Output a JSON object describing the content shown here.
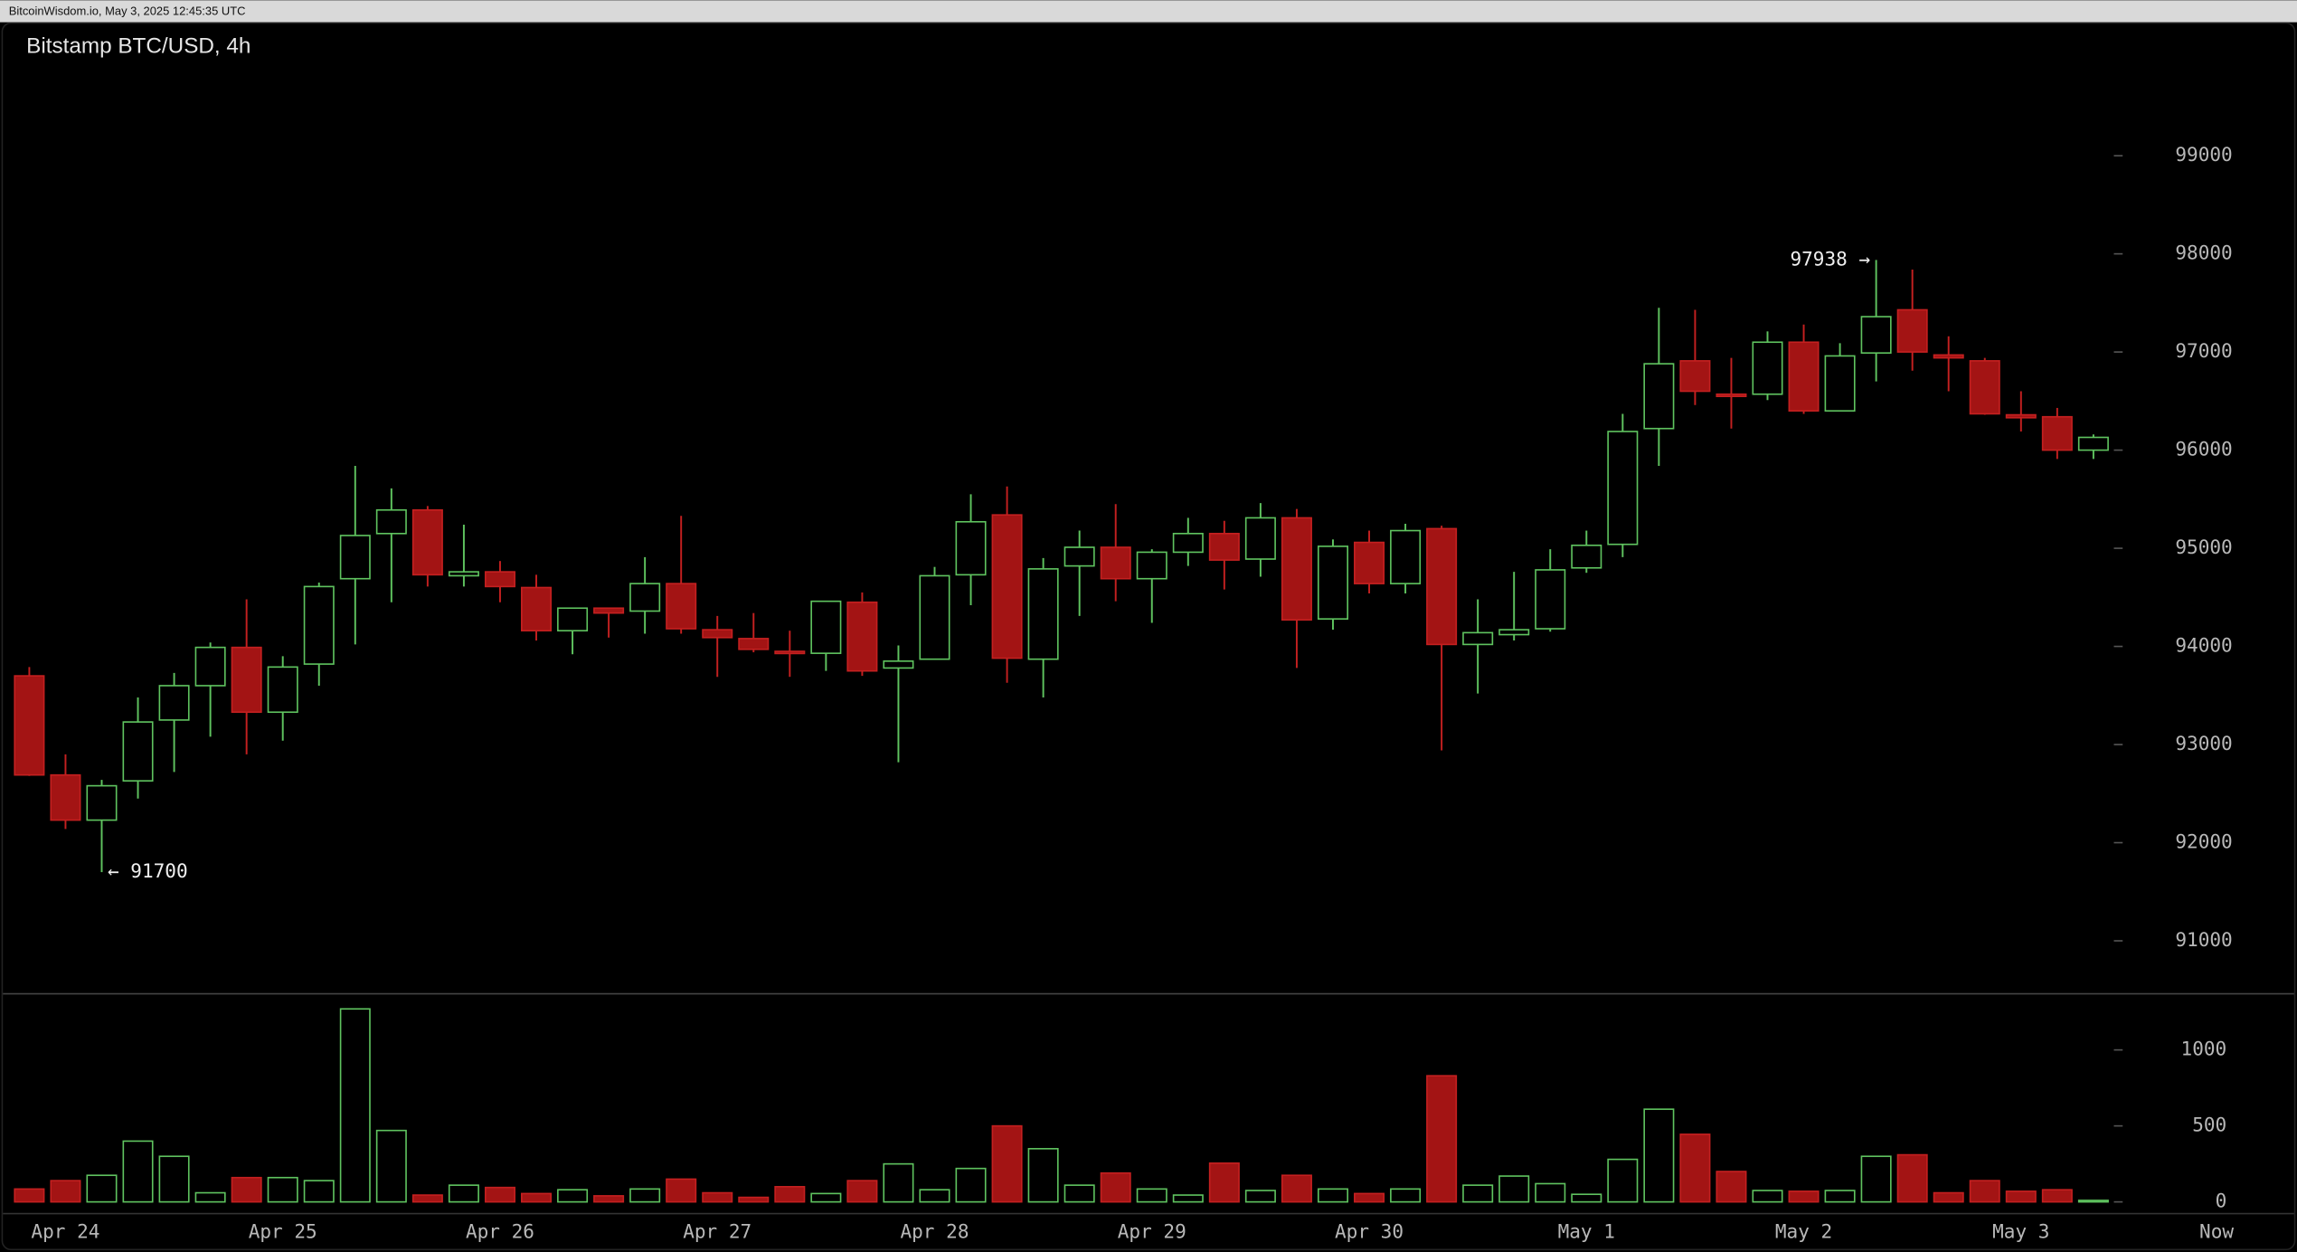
{
  "header": {
    "text": "BitcoinWisdom.io, May 3, 2025 12:45:35 UTC"
  },
  "chart_data": {
    "type": "candlestick",
    "title": "Bitstamp BTC/USD, 4h",
    "categories": [
      null,
      "Apr 24",
      null,
      null,
      null,
      null,
      null,
      "Apr 25",
      null,
      null,
      null,
      null,
      null,
      "Apr 26",
      null,
      null,
      null,
      null,
      null,
      "Apr 27",
      null,
      null,
      null,
      null,
      null,
      "Apr 28",
      null,
      null,
      null,
      null,
      null,
      "Apr 29",
      null,
      null,
      null,
      null,
      null,
      "Apr 30",
      null,
      null,
      null,
      null,
      null,
      "May 1",
      null,
      null,
      null,
      null,
      null,
      "May 2",
      null,
      null,
      null,
      null,
      null,
      "May 3",
      null,
      null
    ],
    "now_label": "Now",
    "open": [
      93700,
      92690,
      92230,
      92630,
      93250,
      93600,
      93990,
      93330,
      93820,
      94690,
      95150,
      95390,
      94720,
      94760,
      94600,
      94160,
      94390,
      94360,
      94640,
      94170,
      94080,
      93950,
      93930,
      94450,
      93780,
      93870,
      94730,
      95340,
      93870,
      94820,
      95010,
      94690,
      94960,
      95150,
      94890,
      95310,
      94280,
      95060,
      94640,
      95200,
      94020,
      94120,
      94180,
      94800,
      95040,
      96220,
      96910,
      96570,
      96570,
      97100,
      96400,
      96990,
      97430,
      96970,
      96910,
      96360,
      96340,
      96000
    ],
    "high": [
      93790,
      92900,
      92640,
      93480,
      93730,
      94040,
      94480,
      93900,
      94650,
      95840,
      95610,
      95430,
      95240,
      94870,
      94730,
      94390,
      94390,
      94910,
      95330,
      94310,
      94340,
      94160,
      94460,
      94550,
      94010,
      94810,
      95550,
      95630,
      94900,
      95180,
      95450,
      94990,
      95310,
      95280,
      95460,
      95400,
      95090,
      95180,
      95250,
      95230,
      94480,
      94760,
      94990,
      95180,
      96370,
      97450,
      97430,
      96940,
      97210,
      97280,
      97090,
      97938,
      97840,
      97160,
      96940,
      96600,
      96430,
      96160
    ],
    "low": [
      92680,
      92140,
      91700,
      92450,
      92720,
      93080,
      92900,
      93040,
      93600,
      94020,
      94450,
      94610,
      94610,
      94450,
      94060,
      93920,
      94090,
      94130,
      94130,
      93690,
      93940,
      93690,
      93750,
      93700,
      92820,
      93870,
      94420,
      93630,
      93480,
      94310,
      94460,
      94240,
      94820,
      94580,
      94710,
      93780,
      94170,
      94540,
      94540,
      92940,
      93520,
      94060,
      94150,
      94750,
      94910,
      95840,
      96460,
      96220,
      96510,
      96370,
      96400,
      96700,
      96810,
      96600,
      96360,
      96190,
      95910,
      95910
    ],
    "close": [
      92690,
      92230,
      92580,
      93230,
      93600,
      93990,
      93330,
      93790,
      94610,
      95130,
      95390,
      94730,
      94760,
      94610,
      94160,
      94390,
      94340,
      94640,
      94180,
      94090,
      93970,
      93930,
      94460,
      93750,
      93850,
      94720,
      95270,
      93880,
      94790,
      95010,
      94690,
      94960,
      95150,
      94880,
      95310,
      94270,
      95020,
      94640,
      95180,
      94020,
      94140,
      94170,
      94780,
      95030,
      96190,
      96880,
      96600,
      96550,
      97100,
      96400,
      96960,
      97360,
      97000,
      96940,
      96370,
      96330,
      96000,
      96130
    ],
    "volume": [
      85,
      140,
      175,
      400,
      300,
      60,
      160,
      160,
      140,
      1270,
      470,
      45,
      110,
      95,
      55,
      80,
      40,
      85,
      150,
      60,
      30,
      100,
      55,
      140,
      250,
      80,
      220,
      500,
      350,
      110,
      190,
      85,
      45,
      255,
      75,
      175,
      85,
      55,
      85,
      830,
      110,
      170,
      120,
      50,
      280,
      610,
      445,
      200,
      75,
      70,
      75,
      300,
      310,
      60,
      140,
      70,
      80,
      10
    ],
    "up_color": "#5fc35f",
    "down_color": "#a31414",
    "ylim": [
      90460,
      100360
    ],
    "yticks": [
      91000,
      92000,
      93000,
      94000,
      95000,
      96000,
      97000,
      98000,
      99000
    ],
    "volume_ylim": [
      0,
      1350
    ],
    "volume_yticks": [
      0,
      500,
      1000
    ],
    "high_label": "97938 →",
    "low_label": "← 91700"
  }
}
